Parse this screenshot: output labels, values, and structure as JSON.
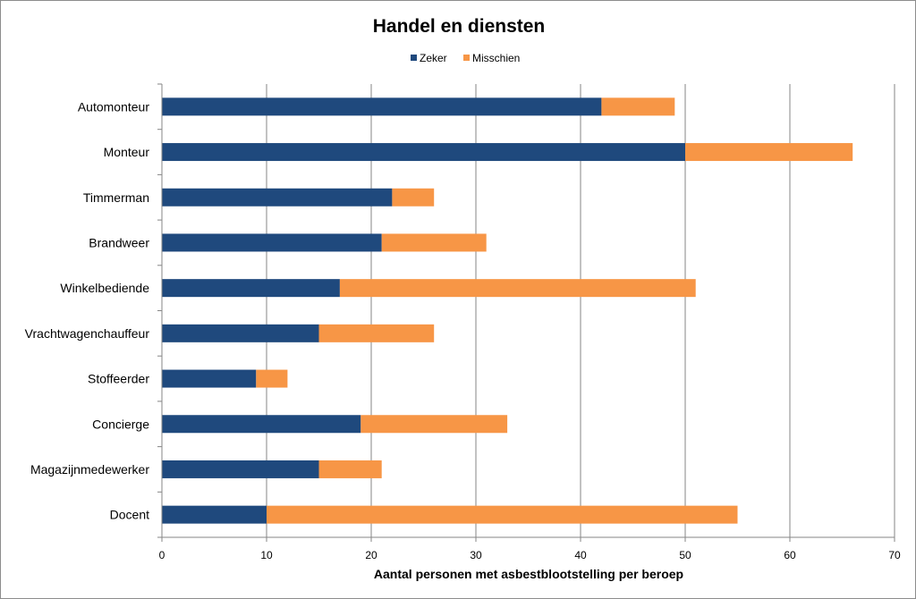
{
  "chart_data": {
    "type": "bar",
    "orientation": "horizontal",
    "stacked": true,
    "title": "Handel en diensten",
    "xlabel": "Aantal personen met asbestblootstelling per beroep",
    "ylabel": "",
    "xlim": [
      0,
      70
    ],
    "x_ticks": [
      0,
      10,
      20,
      30,
      40,
      50,
      60,
      70
    ],
    "grid": "vertical",
    "legend_position": "top",
    "categories": [
      "Automonteur",
      "Monteur",
      "Timmerman",
      "Brandweer",
      "Winkelbediende",
      "Vrachtwagenchauffeur",
      "Stoffeerder",
      "Concierge",
      "Magazijnmedewerker",
      "Docent"
    ],
    "series": [
      {
        "name": "Zeker",
        "color": "#1f497d",
        "values": [
          42,
          50,
          22,
          21,
          17,
          15,
          9,
          19,
          15,
          10
        ]
      },
      {
        "name": "Misschien",
        "color": "#f79646",
        "values": [
          7,
          16,
          4,
          10,
          34,
          11,
          3,
          14,
          6,
          45
        ]
      }
    ]
  }
}
